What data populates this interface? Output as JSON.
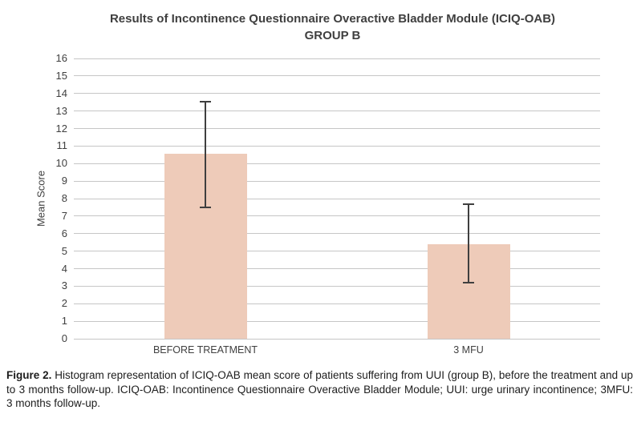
{
  "title": {
    "line1": "Results of Incontinence Questionnaire Overactive Bladder Module (ICIQ-OAB)",
    "line2": "GROUP B"
  },
  "chart_data": {
    "type": "bar",
    "categories": [
      "BEFORE TREATMENT",
      "3 MFU"
    ],
    "values": [
      10.55,
      5.4
    ],
    "error_bars": {
      "upper": [
        13.55,
        7.7
      ],
      "lower": [
        7.5,
        3.2
      ]
    },
    "title": "Results of Incontinence Questionnaire Overactive Bladder Module (ICIQ-OAB) GROUP B",
    "xlabel": "",
    "ylabel": "Mean Score",
    "ylim": [
      0,
      16
    ],
    "ytick_step": 1,
    "grid": true,
    "legend": false,
    "bar_color": "#eecbb9",
    "error_color": "#3f3f3f",
    "gridline_color": "#c6c6c6"
  },
  "caption": {
    "label": "Figure 2.",
    "text": " Histogram representation of ICIQ-OAB mean score of patients suffering from UUI (group B), before the treatment and up to 3 months follow-up. ICIQ-OAB: Incontinence Questionnaire Overactive Bladder Module; UUI: urge urinary incontinence; 3MFU: 3 months follow-up."
  }
}
